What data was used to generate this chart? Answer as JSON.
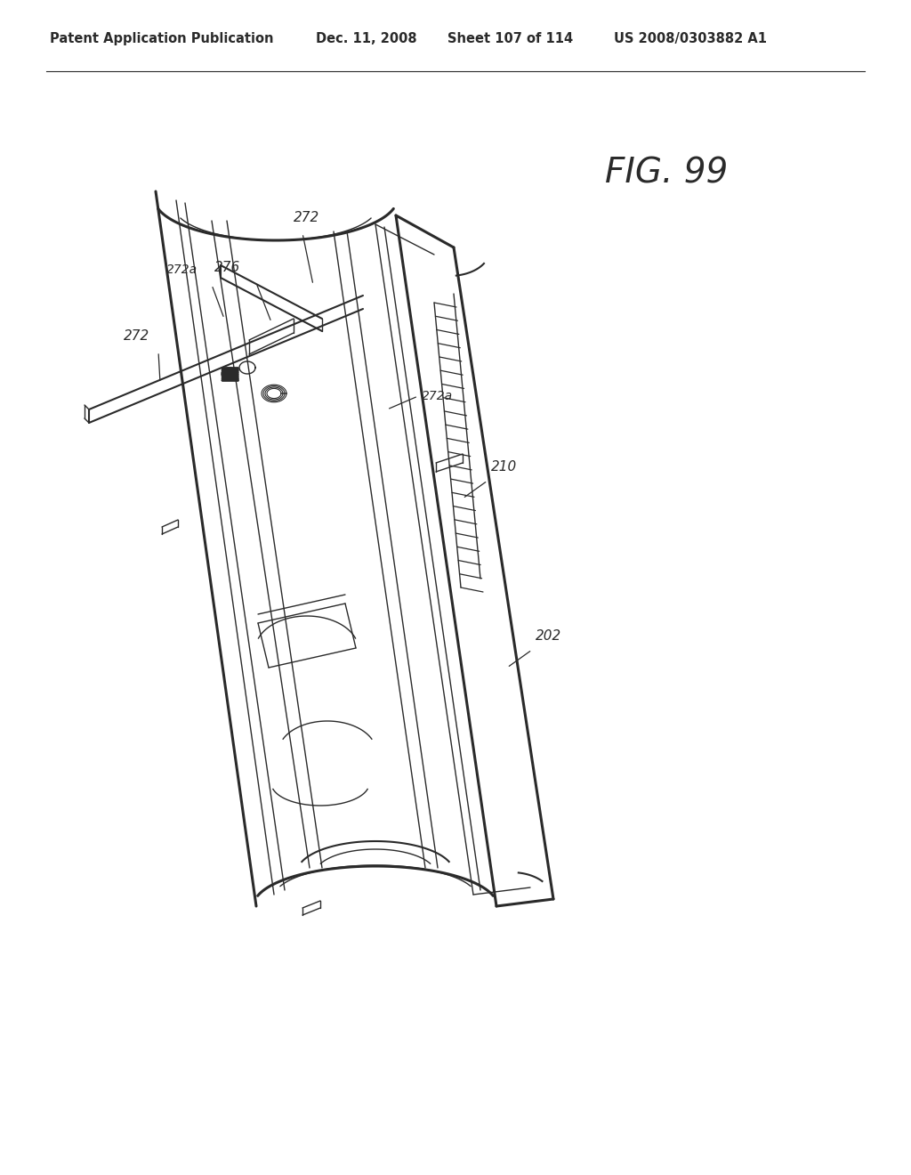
{
  "header_left": "Patent Application Publication",
  "header_date": "Dec. 11, 2008",
  "header_sheet": "Sheet 107 of 114",
  "header_patent": "US 2008/0303882 A1",
  "fig_label": "FIG. 99",
  "bg_color": "#ffffff",
  "line_color": "#2a2a2a",
  "header_fontsize": 10.5,
  "label_fontsize": 11,
  "fig_fontsize": 28
}
